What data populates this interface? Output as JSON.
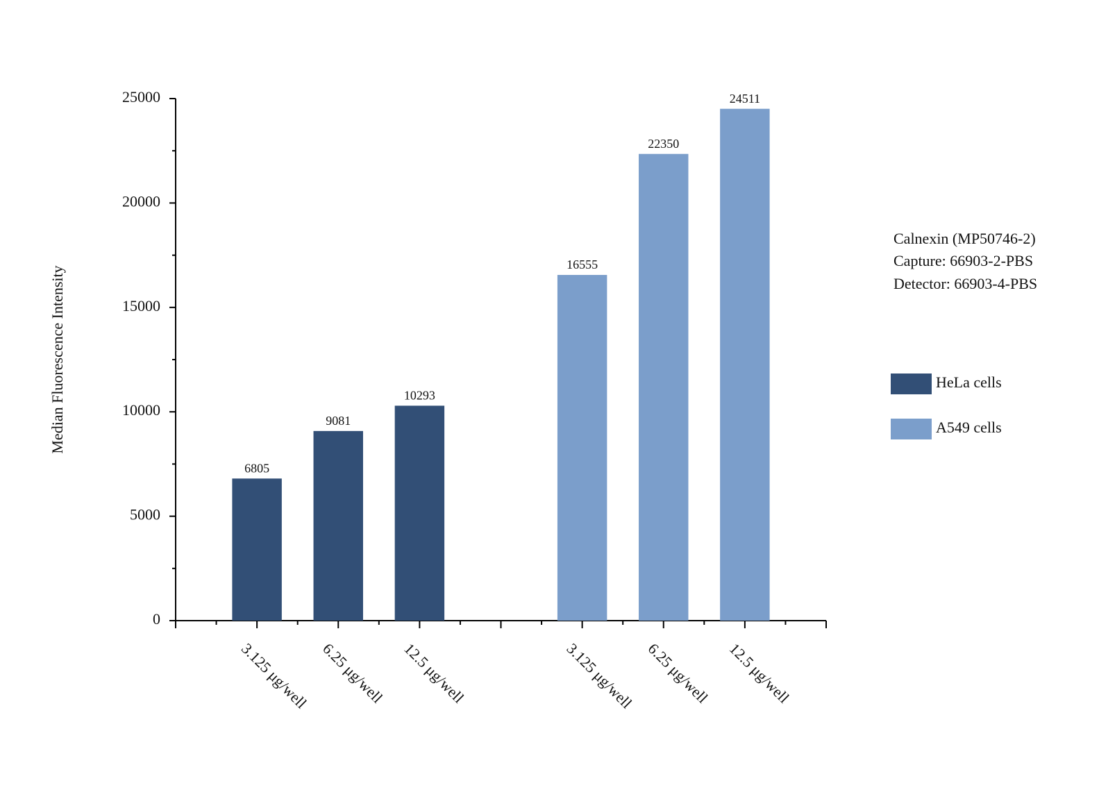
{
  "chart_data": {
    "type": "bar",
    "y_label": "Median Fluorescence Intensity",
    "annotations": [
      "Calnexin (MP50746-2)",
      "Capture: 66903-2-PBS",
      "Detector: 66903-4-PBS"
    ],
    "categories": [
      "3.125 μg/well",
      "6.25 μg/well",
      "12.5 μg/well",
      null,
      "3.125 μg/well",
      "6.25 μg/well",
      "12.5 μg/well"
    ],
    "series": [
      {
        "name": "HeLa cells",
        "color": "#324f76",
        "values": [
          6805,
          9081,
          10293,
          null,
          null,
          null,
          null
        ]
      },
      {
        "name": "A549 cells",
        "color": "#7b9ecb",
        "values": [
          null,
          null,
          null,
          null,
          16555,
          22350,
          24511
        ]
      }
    ],
    "ylim": [
      0,
      25000
    ],
    "yticks": [
      0,
      5000,
      10000,
      15000,
      20000,
      25000
    ],
    "legend": "right"
  }
}
